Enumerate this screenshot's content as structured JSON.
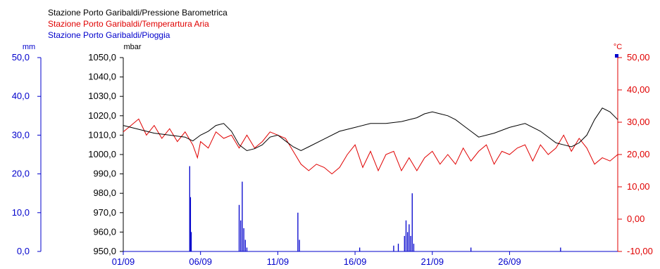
{
  "chart_data": {
    "type": "line",
    "legend": [
      {
        "label": "Stazione Porto Garibaldi/Pressione Barometrica",
        "color": "#000000"
      },
      {
        "label": "Stazione Porto Garibaldi/Temperartura Aria",
        "color": "#e00000"
      },
      {
        "label": "Stazione Porto Garibaldi/Pioggia",
        "color": "#0000cc"
      }
    ],
    "axes": {
      "rain": {
        "unit": "mm",
        "range": [
          0,
          50
        ],
        "ticks": [
          "0,0",
          "10,0",
          "20,0",
          "30,0",
          "40,0",
          "50,0"
        ],
        "color": "#0000cc"
      },
      "pressure": {
        "unit": "mbar",
        "range": [
          950,
          1050
        ],
        "ticks": [
          "950,0",
          "960,0",
          "970,0",
          "980,0",
          "990,0",
          "1000,0",
          "1010,0",
          "1020,0",
          "1030,0",
          "1040,0",
          "1050,0"
        ],
        "color": "#000000"
      },
      "temperature": {
        "unit": "°C",
        "range": [
          -10,
          50
        ],
        "ticks": [
          "-10,00",
          "0,00",
          "10,00",
          "20,00",
          "30,00",
          "40,00",
          "50,00"
        ],
        "color": "#e00000"
      },
      "x": {
        "range": [
          1,
          33
        ],
        "tick_days": [
          1,
          6,
          11,
          16,
          21,
          26
        ],
        "tick_labels": [
          "01/09",
          "06/09",
          "11/09",
          "16/09",
          "21/09",
          "26/09"
        ]
      }
    },
    "series": [
      {
        "name": "Stazione Porto Garibaldi/Pressione Barometrica",
        "axis": "pressure",
        "color": "#000000",
        "x": [
          1,
          1.5,
          2,
          3,
          4,
          5,
          5.5,
          6,
          6.5,
          7,
          7.5,
          8,
          8.5,
          9,
          9.5,
          10,
          10.5,
          11,
          11.5,
          12,
          12.5,
          13,
          14,
          15,
          16,
          17,
          18,
          19,
          20,
          20.5,
          21,
          21.5,
          22,
          22.5,
          23,
          23.5,
          24,
          25,
          26,
          27,
          28,
          29,
          29.5,
          30,
          30.5,
          31,
          31.5,
          32,
          32.5,
          33
        ],
        "y": [
          1015,
          1014,
          1013,
          1011,
          1010,
          1009,
          1007,
          1010,
          1012,
          1015,
          1016,
          1012,
          1005,
          1002,
          1003,
          1005,
          1009,
          1010,
          1007,
          1004,
          1002,
          1004,
          1008,
          1012,
          1014,
          1016,
          1016,
          1017,
          1019,
          1021,
          1022,
          1021,
          1020,
          1018,
          1015,
          1012,
          1009,
          1011,
          1014,
          1016,
          1012,
          1006,
          1005,
          1004,
          1006,
          1010,
          1018,
          1024,
          1022,
          1018
        ]
      },
      {
        "name": "Stazione Porto Garibaldi/Temperartura Aria",
        "axis": "temperature",
        "color": "#e00000",
        "x": [
          1,
          1.5,
          2,
          2.5,
          3,
          3.5,
          4,
          4.5,
          5,
          5.5,
          5.8,
          6,
          6.5,
          7,
          7.5,
          8,
          8.5,
          9,
          9.5,
          10,
          10.5,
          11,
          11.5,
          12,
          12.5,
          13,
          13.5,
          14,
          14.5,
          15,
          15.5,
          16,
          16.5,
          17,
          17.5,
          18,
          18.5,
          19,
          19.5,
          20,
          20.5,
          21,
          21.5,
          22,
          22.5,
          23,
          23.5,
          24,
          24.5,
          25,
          25.5,
          26,
          26.5,
          27,
          27.5,
          28,
          28.5,
          29,
          29.5,
          30,
          30.5,
          31,
          31.5,
          32,
          32.5,
          33
        ],
        "y": [
          27,
          29,
          31,
          26,
          29,
          25,
          28,
          24,
          27,
          23,
          19,
          24,
          22,
          27,
          25,
          26,
          22,
          26,
          22,
          24,
          27,
          26,
          25,
          21,
          17,
          15,
          17,
          16,
          14,
          16,
          20,
          23,
          16,
          21,
          15,
          20,
          21,
          15,
          19,
          15,
          19,
          21,
          17,
          20,
          17,
          22,
          18,
          21,
          23,
          17,
          21,
          20,
          22,
          23,
          18,
          23,
          20,
          22,
          26,
          21,
          25,
          22,
          17,
          19,
          18,
          20
        ]
      },
      {
        "name": "Stazione Porto Garibaldi/Pioggia",
        "axis": "rain",
        "color": "#0000cc",
        "x": [
          5.3,
          5.35,
          5.4,
          8.5,
          8.6,
          8.7,
          8.8,
          8.9,
          9.0,
          12.3,
          12.4,
          19.2,
          19.3,
          19.4,
          19.5,
          19.6,
          19.7,
          19.8,
          18.8,
          18.5,
          16.3,
          23.5,
          29.3
        ],
        "y": [
          22,
          14,
          5,
          12,
          8,
          18,
          6,
          3,
          1,
          10,
          3,
          4,
          8,
          5,
          7,
          4,
          15,
          2,
          2,
          1.5,
          1,
          1,
          1
        ]
      }
    ]
  }
}
